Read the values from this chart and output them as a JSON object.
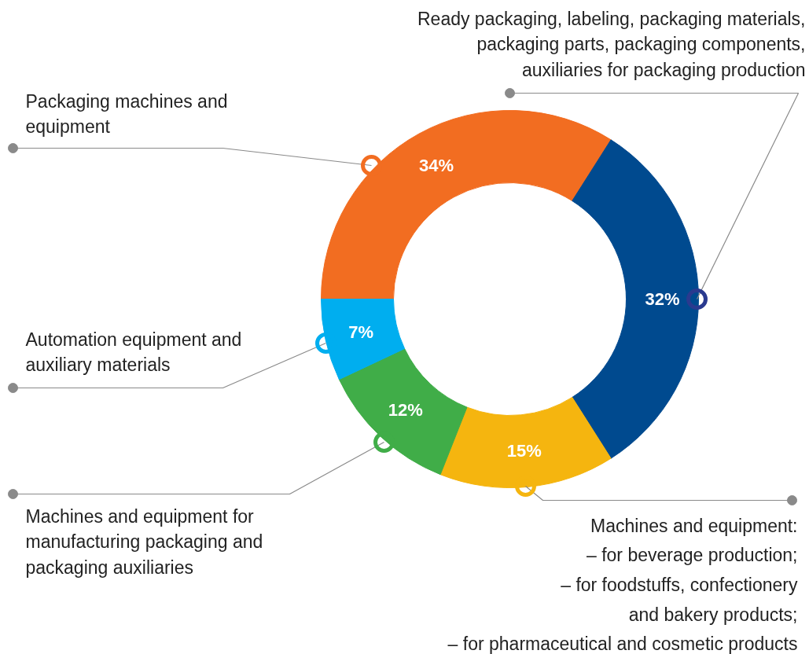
{
  "chart_data": {
    "type": "donut",
    "categories": [
      "Packaging machines and\nequipment",
      "Ready packaging, labeling, packaging materials,\npackaging parts, packaging components,\nauxiliaries for packaging production",
      "Machines and equipment:\n– for beverage production;\n– for foodstuffs, confectionery\nand bakery products;\n– for pharmaceutical and cosmetic products",
      "Machines and equipment for\nmanufacturing packaging and\npackaging auxiliaries",
      "Automation equipment and\nauxiliary materials"
    ],
    "values": [
      34,
      32,
      15,
      12,
      7
    ],
    "colors": [
      "#f26d21",
      "#004a8f",
      "#f5b50f",
      "#40ad48",
      "#00aeef"
    ],
    "value_labels": [
      "34%",
      "32%",
      "15%",
      "12%",
      "7%"
    ]
  }
}
